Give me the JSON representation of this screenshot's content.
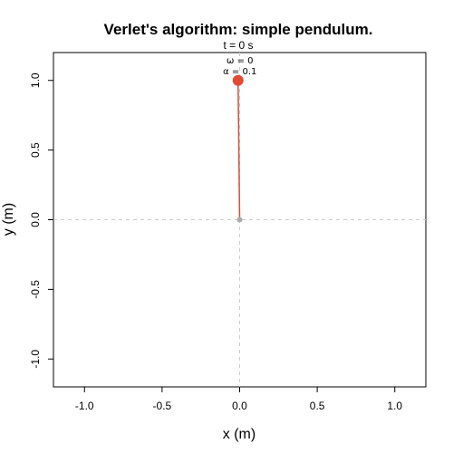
{
  "chart_data": {
    "type": "scatter",
    "title": "Verlet's algorithm: simple pendulum.",
    "subtitle": "t = 0 s",
    "annotations": [
      "ω = 0",
      "α = 0.1"
    ],
    "xlabel": "x (m)",
    "ylabel": "y (m)",
    "xlim": [
      -1.2,
      1.2
    ],
    "ylim": [
      -1.2,
      1.2
    ],
    "xticks": [
      -1.0,
      -0.5,
      0.0,
      0.5,
      1.0
    ],
    "yticks": [
      -1.0,
      -0.5,
      0.0,
      0.5,
      1.0
    ],
    "xtick_labels": [
      "-1.0",
      "-0.5",
      "0.0",
      "0.5",
      "1.0"
    ],
    "ytick_labels": [
      "-1.0",
      "-0.5",
      "0.0",
      "0.5",
      "1.0"
    ],
    "pivot": {
      "x": 0,
      "y": 0
    },
    "bob": {
      "x": -0.01,
      "y": 1.0
    },
    "reference_lines": {
      "x": 0,
      "y": 0
    },
    "grid": false,
    "colors": {
      "bob": "#e34a33",
      "rod": "#e34a33",
      "pivot": "#aaaaaa",
      "reference": "#cccccc"
    }
  }
}
